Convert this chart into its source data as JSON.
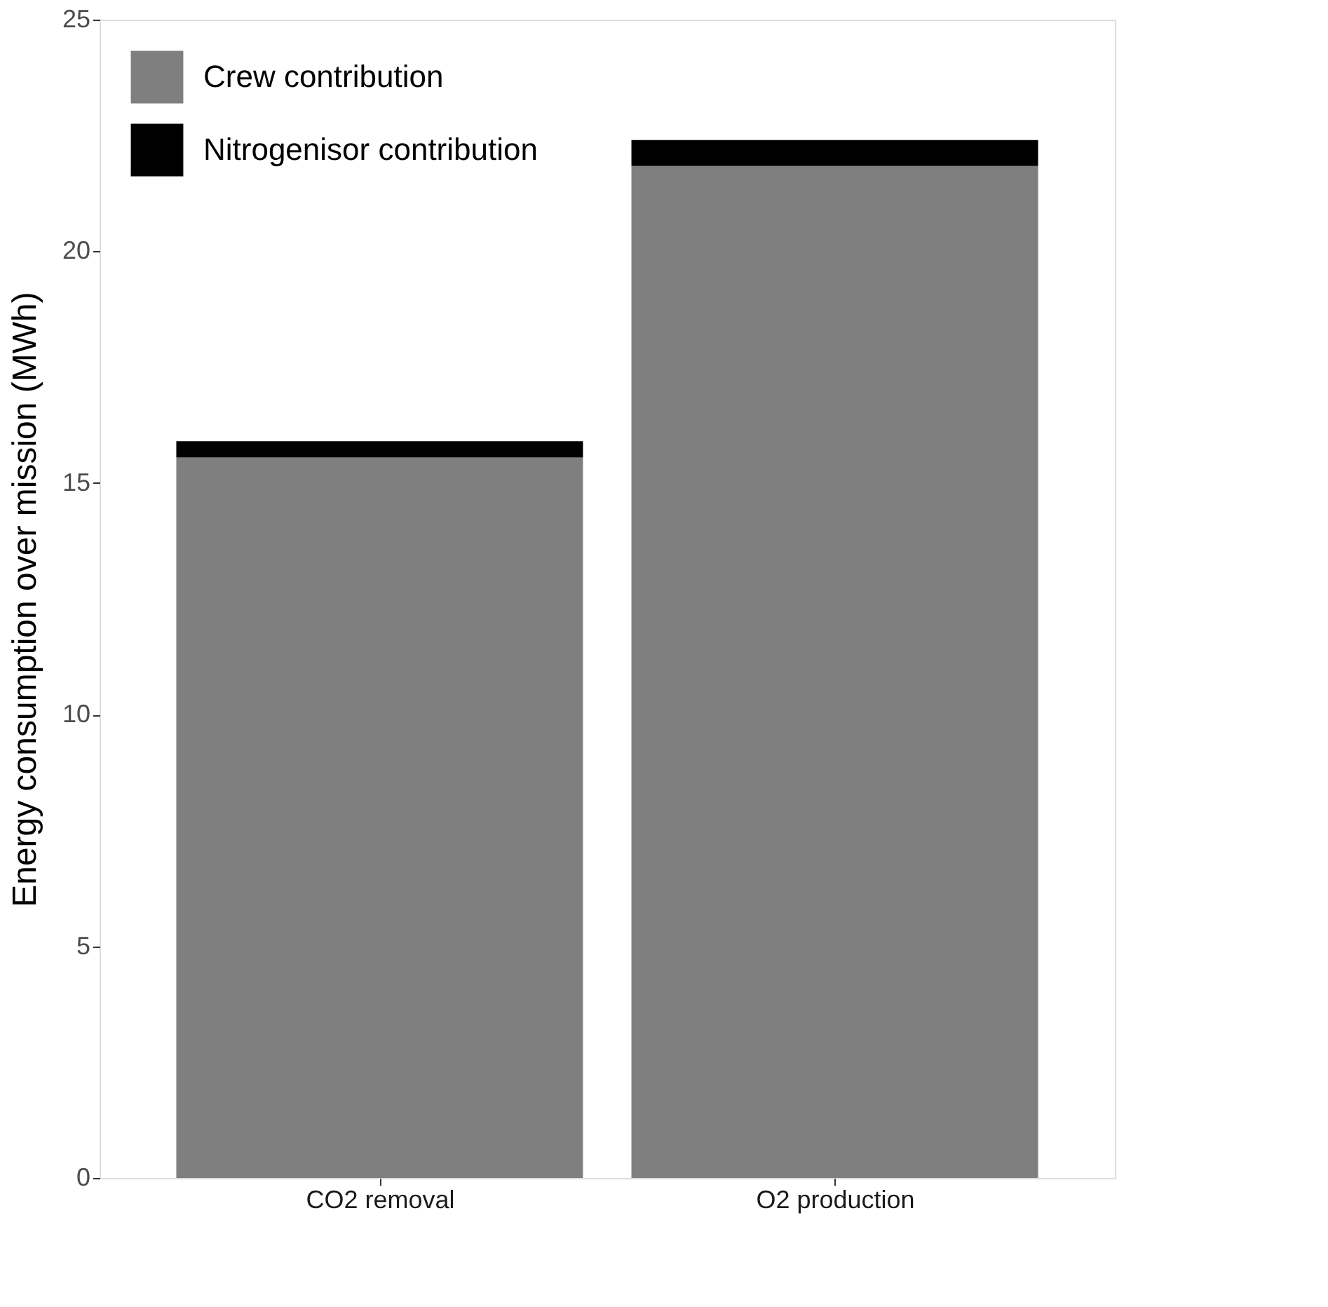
{
  "chart_data": {
    "type": "bar",
    "stacked": true,
    "ylabel": "Energy consumption over mission (MWh)",
    "categories": [
      "CO2 removal",
      "O2 production"
    ],
    "series": [
      {
        "name": "Crew contribution",
        "color": "#7f7f7f",
        "values": [
          15.55,
          21.84
        ]
      },
      {
        "name": "Nitrogenisor contribution",
        "color": "#000000",
        "values": [
          0.35,
          0.56
        ]
      }
    ],
    "ylim": [
      0,
      25
    ],
    "yticks": [
      0,
      5,
      10,
      15,
      20,
      25
    ],
    "grid": false,
    "legend": "top left"
  }
}
